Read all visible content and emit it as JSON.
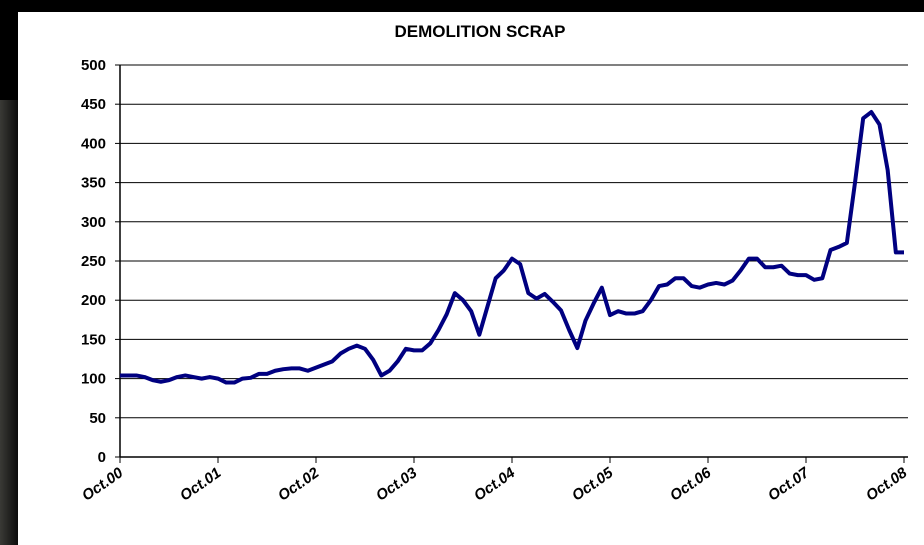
{
  "chart_data": {
    "type": "line",
    "title": "DEMOLITION SCRAP",
    "categories": [
      "Oct.00",
      null,
      null,
      null,
      null,
      null,
      null,
      null,
      null,
      null,
      null,
      null,
      "Oct.01",
      null,
      null,
      null,
      null,
      null,
      null,
      null,
      null,
      null,
      null,
      null,
      "Oct.02",
      null,
      null,
      null,
      null,
      null,
      null,
      null,
      null,
      null,
      null,
      null,
      "Oct.03",
      null,
      null,
      null,
      null,
      null,
      null,
      null,
      null,
      null,
      null,
      null,
      "Oct.04",
      null,
      null,
      null,
      null,
      null,
      null,
      null,
      null,
      null,
      null,
      null,
      "Oct.05",
      null,
      null,
      null,
      null,
      null,
      null,
      null,
      null,
      null,
      null,
      null,
      "Oct.06",
      null,
      null,
      null,
      null,
      null,
      null,
      null,
      null,
      null,
      null,
      null,
      "Oct.07",
      null,
      null,
      null,
      null,
      null,
      null,
      null,
      null,
      null,
      null,
      null,
      "Oct.08"
    ],
    "values": [
      104,
      104,
      104,
      102,
      98,
      96,
      98,
      102,
      104,
      102,
      100,
      102,
      100,
      95,
      95,
      100,
      101,
      106,
      106,
      110,
      112,
      113,
      113,
      110,
      114,
      118,
      122,
      132,
      138,
      142,
      138,
      124,
      104,
      110,
      122,
      138,
      136,
      136,
      145,
      162,
      182,
      209,
      200,
      186,
      156,
      192,
      228,
      238,
      253,
      246,
      209,
      202,
      208,
      198,
      187,
      162,
      139,
      174,
      196,
      216,
      181,
      186,
      183,
      183,
      186,
      200,
      218,
      220,
      228,
      228,
      218,
      216,
      220,
      222,
      220,
      225,
      238,
      253,
      253,
      242,
      242,
      244,
      234,
      232,
      232,
      226,
      228,
      264,
      268,
      273,
      350,
      432,
      440,
      424,
      366,
      261,
      261
    ],
    "color": "#000080",
    "ylim": [
      0,
      500
    ],
    "yticks": [
      0,
      50,
      100,
      150,
      200,
      250,
      300,
      350,
      400,
      450,
      500
    ],
    "grid": true
  }
}
